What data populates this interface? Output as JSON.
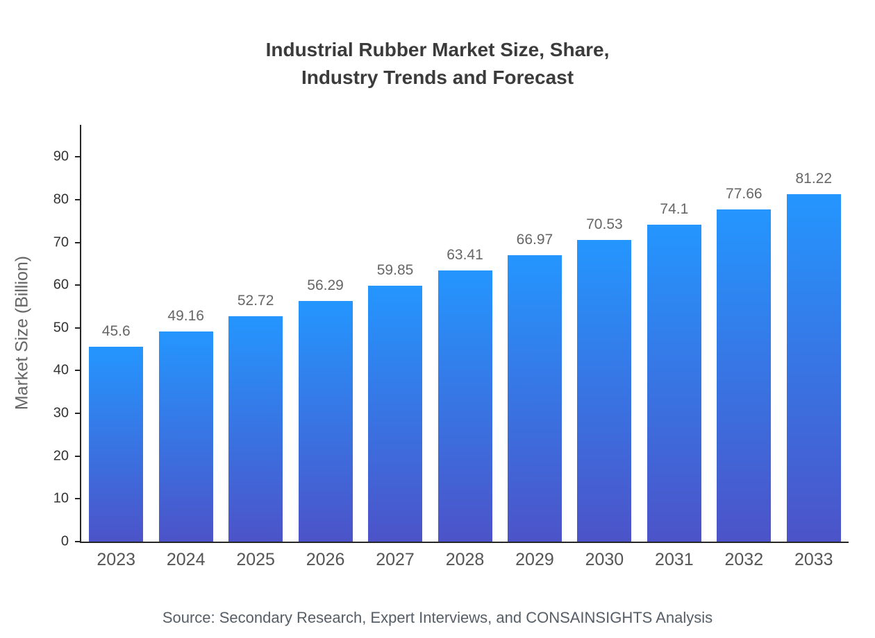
{
  "chart_data": {
    "type": "bar",
    "title": "Industrial Rubber Market Size, Share,\nIndustry Trends and Forecast",
    "categories": [
      "2023",
      "2024",
      "2025",
      "2026",
      "2027",
      "2028",
      "2029",
      "2030",
      "2031",
      "2032",
      "2033"
    ],
    "values": [
      45.6,
      49.16,
      52.72,
      56.29,
      59.85,
      63.41,
      66.97,
      70.53,
      74.1,
      77.66,
      81.22
    ],
    "value_labels": [
      "45.6",
      "49.16",
      "52.72",
      "56.29",
      "59.85",
      "63.41",
      "66.97",
      "70.53",
      "74.1",
      "77.66",
      "81.22"
    ],
    "xlabel": "",
    "ylabel": "Market Size (Billion)",
    "ylim": [
      0,
      97.5
    ],
    "yticks": [
      0,
      10,
      20,
      30,
      40,
      50,
      60,
      70,
      80,
      90
    ],
    "grid": false,
    "legend": "none",
    "source": "Source: Secondary Research, Expert Interviews, and CONSAINSIGHTS Analysis",
    "colors": {
      "bar_gradient_top": "#2496FE",
      "bar_gradient_bottom": "#4C53C8",
      "axis": "#262626",
      "title_text": "#3B3B3B",
      "ytick_text": "#333333",
      "category_text": "#555555",
      "value_text": "#666666",
      "ylabel_text": "#666666",
      "source_text": "#555E66"
    }
  }
}
